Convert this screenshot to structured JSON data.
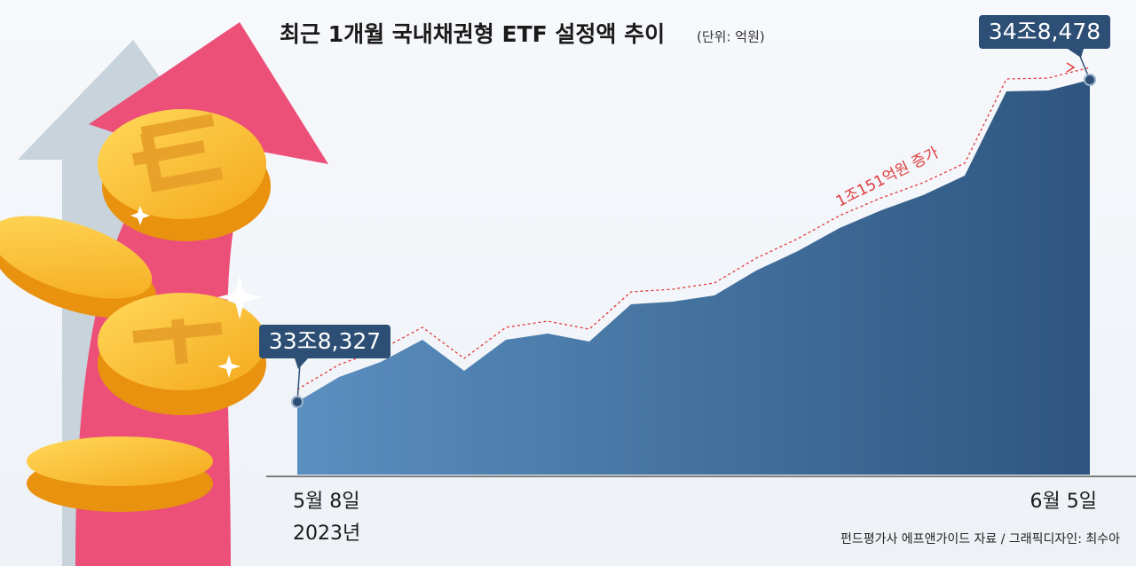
{
  "chart_data": {
    "type": "area",
    "title": "최근 1개월 국내채권형 ETF 설정액 추이",
    "subtitle": "(단위: 억원)",
    "categories": [
      "5월 8일",
      null,
      null,
      null,
      null,
      null,
      null,
      null,
      null,
      null,
      null,
      null,
      null,
      null,
      null,
      null,
      null,
      null,
      null,
      "6월 5일"
    ],
    "year_label": "2023년",
    "values": [
      338327,
      339110,
      339585,
      340284,
      339306,
      340284,
      340480,
      340228,
      341403,
      341487,
      341683,
      342465,
      343081,
      343808,
      344367,
      344843,
      345458,
      348115,
      348142,
      348478
    ],
    "value_labels": [
      "33조8,327",
      null,
      null,
      null,
      null,
      null,
      null,
      null,
      null,
      null,
      null,
      null,
      null,
      null,
      null,
      null,
      null,
      null,
      null,
      "34조8,478"
    ],
    "annotation": "1조151억원 증가",
    "source": "펀드평가사 에프앤가이드 자료 / 그래픽디자인: 최수아",
    "color": "#3a6a98",
    "trend_color": "#e03a3a"
  }
}
